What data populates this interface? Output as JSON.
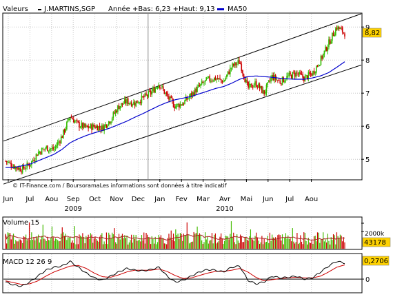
{
  "header": {
    "label": "Valeurs",
    "ticker": "J.MARTINS,SGP",
    "stats": "Année +Bas: 6,23 +Haut: 9,13",
    "ma_label": "MA50"
  },
  "colors": {
    "up": "#33bb00",
    "down": "#cc0000",
    "ma": "#0000cc",
    "channel": "#000000",
    "volume_up": "#44bb00",
    "volume_down": "#cc0000",
    "volume_avg": "#aa2222",
    "macd_line": "#000000",
    "signal_line": "#cc0000",
    "price_tag_bg": "#ffd200"
  },
  "watermark": "© IT-Finance.com / BoursoramaLes informations sont données à titre indicatif",
  "chart_data": [
    {
      "type": "candlestick",
      "panel": "price",
      "ylim": [
        4.4,
        9.4
      ],
      "yticks": [
        "5",
        "6",
        "7",
        "8",
        "9"
      ],
      "last_value": "8,82",
      "months": [
        "Jun",
        "Jul",
        "Aou",
        "Sep",
        "Oct",
        "Nov",
        "Dec",
        "Jan",
        "Fev",
        "Mar",
        "Avr",
        "Mai",
        "Jun",
        "Jul",
        "Aou"
      ],
      "years": [
        "2009",
        "2010"
      ],
      "series_close": [
        4.95,
        4.8,
        4.7,
        4.85,
        5.2,
        5.35,
        5.3,
        5.7,
        6.3,
        6.05,
        5.95,
        6.0,
        5.95,
        6.2,
        6.6,
        6.75,
        6.7,
        6.85,
        7.0,
        7.3,
        6.9,
        6.6,
        6.7,
        6.95,
        7.2,
        7.4,
        7.45,
        7.35,
        7.8,
        7.95,
        7.15,
        7.3,
        7.0,
        7.5,
        7.35,
        7.5,
        7.6,
        7.45,
        7.6,
        8.0,
        8.5,
        9.0,
        8.82
      ],
      "ma50": [
        4.75,
        4.75,
        4.8,
        4.85,
        4.95,
        5.05,
        5.15,
        5.3,
        5.5,
        5.62,
        5.72,
        5.8,
        5.87,
        5.95,
        6.05,
        6.15,
        6.27,
        6.38,
        6.5,
        6.62,
        6.72,
        6.8,
        6.85,
        6.9,
        6.98,
        7.06,
        7.14,
        7.2,
        7.3,
        7.42,
        7.5,
        7.52,
        7.5,
        7.48,
        7.45,
        7.43,
        7.42,
        7.42,
        7.46,
        7.52,
        7.62,
        7.78,
        7.95
      ],
      "channel_upper": [
        5.55,
        9.4
      ],
      "channel_lower": [
        4.25,
        7.85
      ]
    },
    {
      "type": "bar",
      "panel": "volume",
      "title": "Volume 15",
      "last_value": "43178",
      "partial_tick": "2000k"
    },
    {
      "type": "line",
      "panel": "macd",
      "title": "MACD 12 26 9",
      "last_value": "0,2706",
      "yticks": [
        "0"
      ],
      "macd": [
        -0.05,
        -0.1,
        -0.12,
        -0.05,
        0.05,
        0.15,
        0.2,
        0.22,
        0.3,
        0.2,
        0.1,
        0.02,
        -0.02,
        0.05,
        0.12,
        0.18,
        0.15,
        0.14,
        0.16,
        0.2,
        0.05,
        -0.05,
        -0.02,
        0.05,
        0.12,
        0.16,
        0.15,
        0.12,
        0.2,
        0.22,
        -0.02,
        -0.08,
        -0.05,
        0.05,
        0.02,
        0.03,
        0.05,
        0.0,
        0.02,
        0.12,
        0.22,
        0.3,
        0.27
      ],
      "signal": [
        -0.03,
        -0.06,
        -0.09,
        -0.08,
        -0.03,
        0.05,
        0.12,
        0.17,
        0.22,
        0.23,
        0.18,
        0.1,
        0.04,
        0.03,
        0.07,
        0.12,
        0.15,
        0.15,
        0.15,
        0.17,
        0.13,
        0.06,
        0.01,
        0.02,
        0.06,
        0.1,
        0.13,
        0.13,
        0.15,
        0.18,
        0.12,
        0.03,
        -0.03,
        -0.01,
        0.01,
        0.02,
        0.03,
        0.02,
        0.02,
        0.05,
        0.12,
        0.2,
        0.24
      ]
    }
  ]
}
